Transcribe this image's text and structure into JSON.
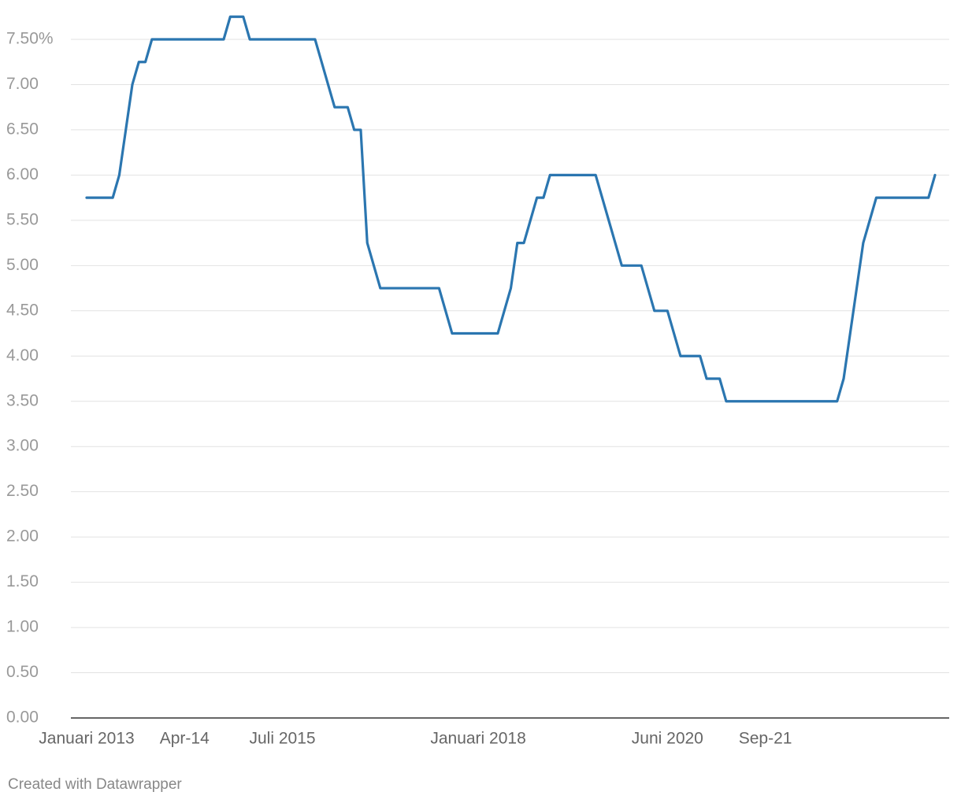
{
  "chart_data": {
    "type": "line",
    "categories": [
      "Januari 2013",
      null,
      null,
      null,
      null,
      null,
      null,
      null,
      null,
      null,
      null,
      null,
      null,
      null,
      null,
      "Apr-14",
      null,
      null,
      null,
      null,
      null,
      null,
      null,
      null,
      null,
      null,
      null,
      null,
      null,
      null,
      "Juli 2015",
      null,
      null,
      null,
      null,
      null,
      null,
      null,
      null,
      null,
      null,
      null,
      null,
      null,
      null,
      null,
      null,
      null,
      null,
      null,
      null,
      null,
      null,
      null,
      null,
      null,
      null,
      null,
      null,
      null,
      "Januari 2018",
      null,
      null,
      null,
      null,
      null,
      null,
      null,
      null,
      null,
      null,
      null,
      null,
      null,
      null,
      null,
      null,
      null,
      null,
      null,
      null,
      null,
      null,
      null,
      null,
      null,
      null,
      null,
      null,
      "Juni 2020",
      null,
      null,
      null,
      null,
      null,
      null,
      null,
      null,
      null,
      null,
      null,
      null,
      null,
      null,
      "Sep-21",
      null,
      null,
      null,
      null,
      null,
      null,
      null,
      null,
      null,
      null,
      null,
      null,
      null,
      null,
      null,
      null,
      null,
      null,
      null,
      null,
      null,
      null,
      null,
      null,
      null,
      null
    ],
    "series": [
      {
        "color": "#2b76b0",
        "values": [
          5.75,
          5.75,
          5.75,
          5.75,
          5.75,
          6.0,
          6.5,
          7.0,
          7.25,
          7.25,
          7.5,
          7.5,
          7.5,
          7.5,
          7.5,
          7.5,
          7.5,
          7.5,
          7.5,
          7.5,
          7.5,
          7.5,
          7.75,
          7.75,
          7.75,
          7.5,
          7.5,
          7.5,
          7.5,
          7.5,
          7.5,
          7.5,
          7.5,
          7.5,
          7.5,
          7.5,
          7.25,
          7.0,
          6.75,
          6.75,
          6.75,
          6.5,
          6.5,
          5.25,
          5.0,
          4.75,
          4.75,
          4.75,
          4.75,
          4.75,
          4.75,
          4.75,
          4.75,
          4.75,
          4.75,
          4.5,
          4.25,
          4.25,
          4.25,
          4.25,
          4.25,
          4.25,
          4.25,
          4.25,
          4.5,
          4.75,
          5.25,
          5.25,
          5.5,
          5.75,
          5.75,
          6.0,
          6.0,
          6.0,
          6.0,
          6.0,
          6.0,
          6.0,
          6.0,
          5.75,
          5.5,
          5.25,
          5.0,
          5.0,
          5.0,
          5.0,
          4.75,
          4.5,
          4.5,
          4.5,
          4.25,
          4.0,
          4.0,
          4.0,
          4.0,
          3.75,
          3.75,
          3.75,
          3.5,
          3.5,
          3.5,
          3.5,
          3.5,
          3.5,
          3.5,
          3.5,
          3.5,
          3.5,
          3.5,
          3.5,
          3.5,
          3.5,
          3.5,
          3.5,
          3.5,
          3.5,
          3.75,
          4.25,
          4.75,
          5.25,
          5.5,
          5.75,
          5.75,
          5.75,
          5.75,
          5.75,
          5.75,
          5.75,
          5.75,
          5.75,
          6.0
        ]
      }
    ],
    "ylim": [
      0,
      7.5
    ],
    "yticks": [
      {
        "value": 0,
        "label": "0.00"
      },
      {
        "value": 0.5,
        "label": "0.50"
      },
      {
        "value": 1,
        "label": "1.00"
      },
      {
        "value": 1.5,
        "label": "1.50"
      },
      {
        "value": 2,
        "label": "2.00"
      },
      {
        "value": 2.5,
        "label": "2.50"
      },
      {
        "value": 3,
        "label": "3.00"
      },
      {
        "value": 3.5,
        "label": "3.50"
      },
      {
        "value": 4,
        "label": "4.00"
      },
      {
        "value": 4.5,
        "label": "4.50"
      },
      {
        "value": 5,
        "label": "5.00"
      },
      {
        "value": 5.5,
        "label": "5.50"
      },
      {
        "value": 6,
        "label": "6.00"
      },
      {
        "value": 6.5,
        "label": "6.50"
      },
      {
        "value": 7,
        "label": "7.00"
      },
      {
        "value": 7.5,
        "label": "7.50%"
      }
    ],
    "grid": true,
    "footer": "Created with Datawrapper"
  }
}
